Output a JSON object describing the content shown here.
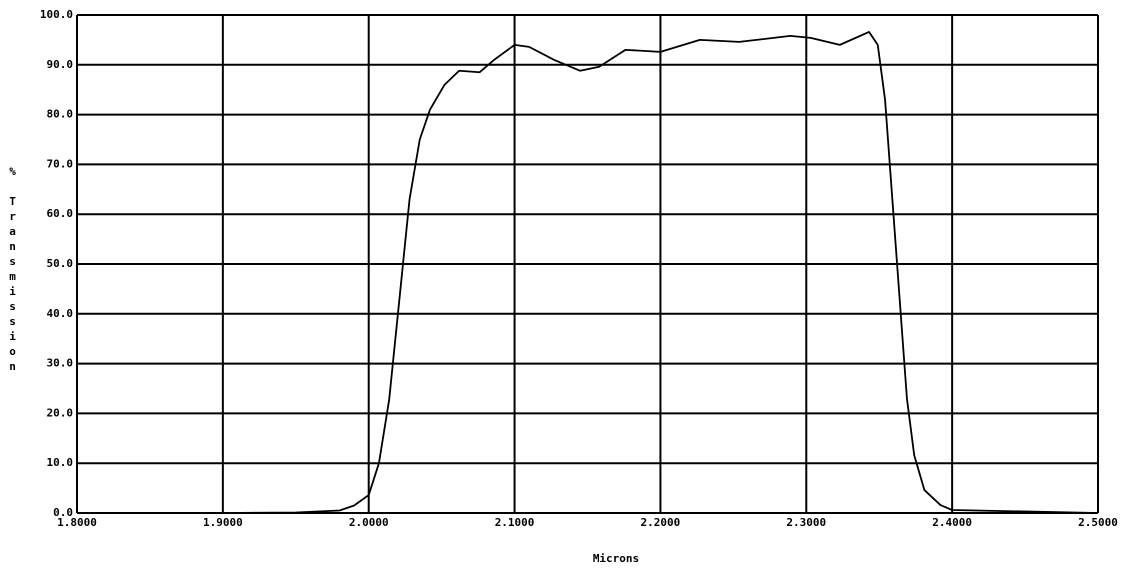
{
  "chart_data": {
    "type": "line",
    "x_label": "Microns",
    "y_label": "% Transmission",
    "xlim": [
      1.8,
      2.5
    ],
    "ylim": [
      0,
      100
    ],
    "xticks": [
      {
        "value": 1.8,
        "label": "1.8000"
      },
      {
        "value": 1.9,
        "label": "1.9000"
      },
      {
        "value": 2.0,
        "label": "2.0000"
      },
      {
        "value": 2.1,
        "label": "2.1000"
      },
      {
        "value": 2.2,
        "label": "2.2000"
      },
      {
        "value": 2.3,
        "label": "2.3000"
      },
      {
        "value": 2.4,
        "label": "2.4000"
      },
      {
        "value": 2.5,
        "label": "2.5000"
      }
    ],
    "yticks": [
      {
        "value": 0,
        "label": "0.0"
      },
      {
        "value": 10,
        "label": "10.0"
      },
      {
        "value": 20,
        "label": "20.0"
      },
      {
        "value": 30,
        "label": "30.0"
      },
      {
        "value": 40,
        "label": "40.0"
      },
      {
        "value": 50,
        "label": "50.0"
      },
      {
        "value": 60,
        "label": "60.0"
      },
      {
        "value": 70,
        "label": "70.0"
      },
      {
        "value": 80,
        "label": "80.0"
      },
      {
        "value": 90,
        "label": "90.0"
      },
      {
        "value": 100,
        "label": "100.0"
      }
    ],
    "grid": true,
    "series": [
      {
        "name": "Transmission",
        "color": "#000000",
        "x": [
          1.8,
          1.9,
          1.95,
          1.98,
          1.99,
          2.0,
          2.007,
          2.014,
          2.021,
          2.028,
          2.035,
          2.042,
          2.052,
          2.062,
          2.076,
          2.086,
          2.1,
          2.11,
          2.127,
          2.145,
          2.158,
          2.176,
          2.2,
          2.227,
          2.254,
          2.289,
          2.303,
          2.323,
          2.343,
          2.349,
          2.354,
          2.359,
          2.364,
          2.369,
          2.374,
          2.381,
          2.392,
          2.4,
          2.5
        ],
        "values": [
          0,
          0,
          0.1,
          0.5,
          1.5,
          3.6,
          10,
          22.7,
          42.8,
          63,
          75,
          81,
          86,
          88.8,
          88.5,
          91,
          94,
          93.6,
          91,
          88.8,
          89.6,
          93,
          92.6,
          95,
          94.6,
          95.8,
          95.4,
          94,
          96.6,
          94,
          83,
          63,
          43,
          23,
          11.6,
          4.6,
          1.6,
          0.6,
          0
        ]
      }
    ]
  }
}
